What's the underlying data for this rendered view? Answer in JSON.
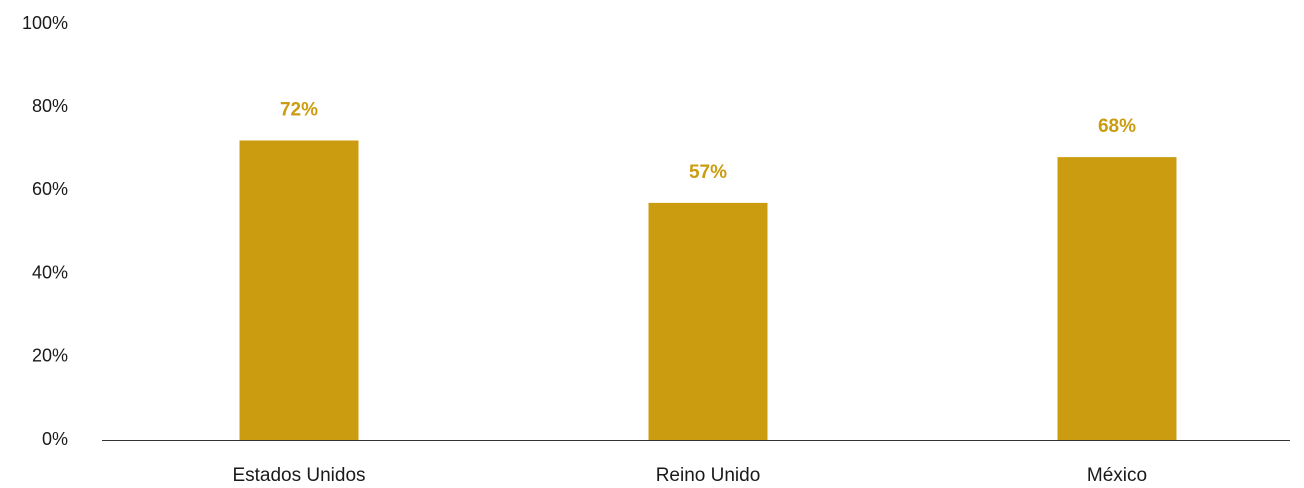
{
  "chart_data": {
    "type": "bar",
    "title": "",
    "xlabel": "",
    "ylabel": "",
    "categories": [
      "Estados Unidos",
      "Reino Unido",
      "México"
    ],
    "values": [
      72,
      57,
      68
    ],
    "data_labels": [
      "72%",
      "57%",
      "68%"
    ],
    "ylim": [
      0,
      100
    ],
    "yticks": [
      0,
      20,
      40,
      60,
      80,
      100
    ],
    "ytick_labels": [
      "0%",
      "20%",
      "40%",
      "60%",
      "80%",
      "100%"
    ],
    "grid": false,
    "colors": {
      "bar": "#CC9C10",
      "data_label": "#CC9C10",
      "axis_line": "#333333",
      "text": "#1a1a1a"
    }
  }
}
